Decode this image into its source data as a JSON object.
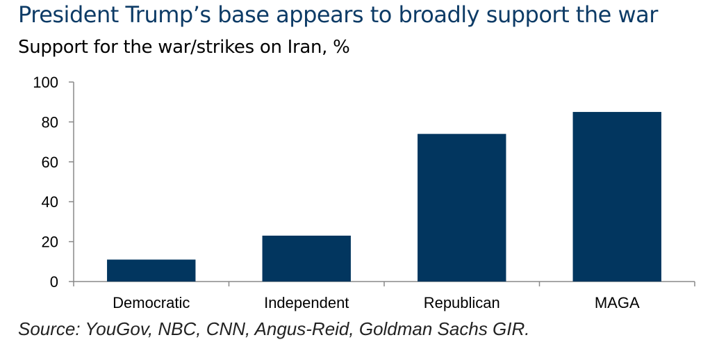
{
  "title": "President Trump’s base appears to broadly support the war",
  "subtitle": "Support for the war/strikes on Iran, %",
  "source": "Source: YouGov, NBC, CNN, Angus-Reid, Goldman Sachs GIR.",
  "colors": {
    "bar": "#02365f",
    "title": "#0d3b66",
    "axis": "#888888"
  },
  "chart_data": {
    "type": "bar",
    "title": "President Trump’s base appears to broadly support the war",
    "subtitle": "Support for the war/strikes on Iran, %",
    "categories": [
      "Democratic",
      "Independent",
      "Republican",
      "MAGA"
    ],
    "values": [
      11,
      23,
      74,
      85
    ],
    "xlabel": "",
    "ylabel": "",
    "ylim": [
      0,
      100
    ],
    "yticks": [
      0,
      20,
      40,
      60,
      80,
      100
    ],
    "grid": false
  }
}
